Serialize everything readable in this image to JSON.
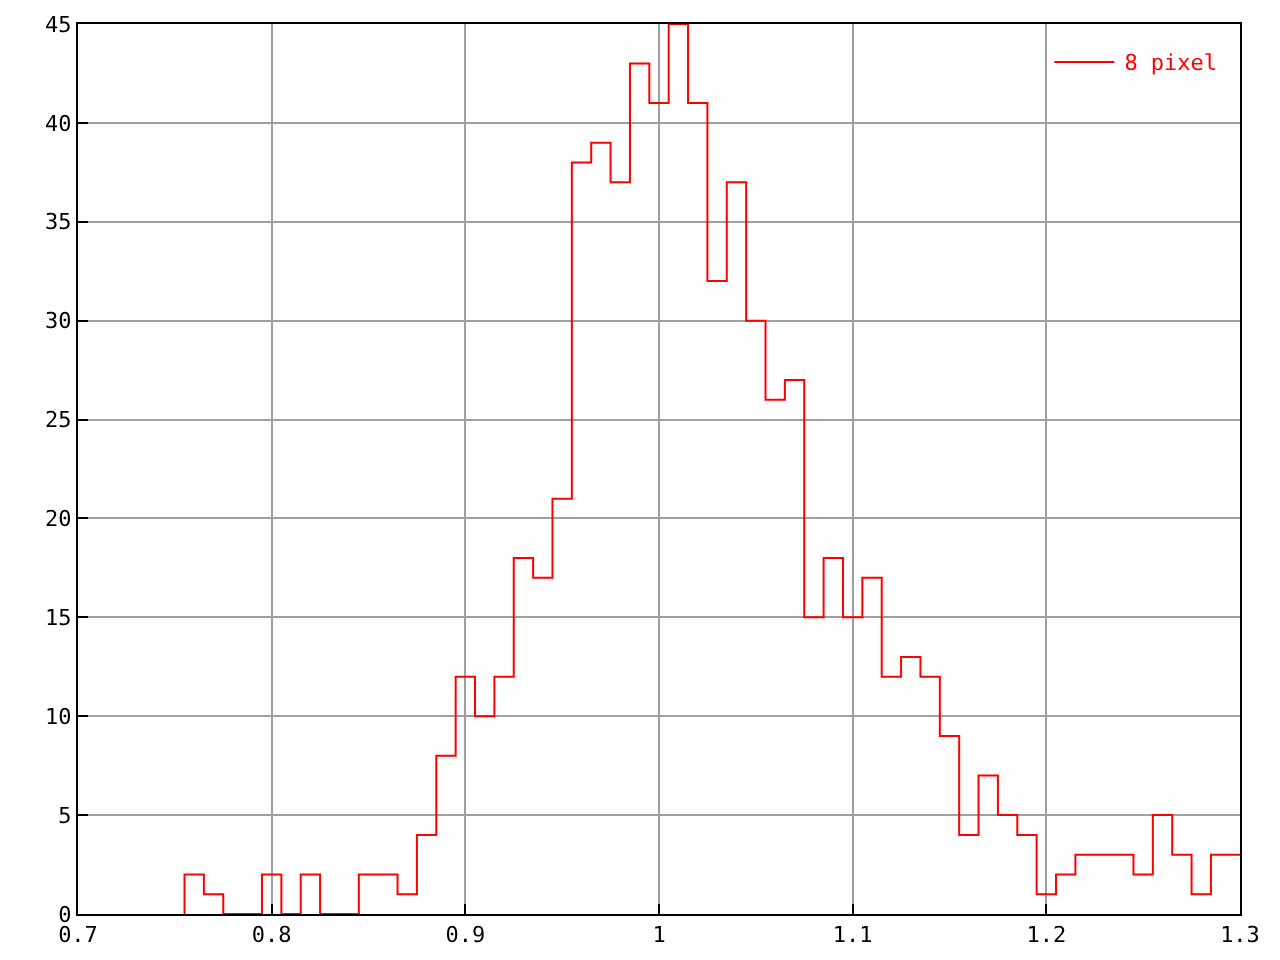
{
  "chart_data": {
    "type": "histogram",
    "bins": [
      0.755,
      0.765,
      0.775,
      0.785,
      0.795,
      0.805,
      0.815,
      0.825,
      0.835,
      0.845,
      0.855,
      0.865,
      0.875,
      0.885,
      0.895,
      0.905,
      0.915,
      0.925,
      0.935,
      0.945,
      0.955,
      0.965,
      0.975,
      0.985,
      0.995,
      1.005,
      1.015,
      1.025,
      1.035,
      1.045,
      1.055,
      1.065,
      1.075,
      1.085,
      1.095,
      1.105,
      1.115,
      1.125,
      1.135,
      1.145,
      1.155,
      1.165,
      1.175,
      1.185,
      1.195,
      1.205,
      1.215,
      1.225,
      1.235,
      1.245,
      1.255,
      1.265,
      1.275,
      1.285,
      1.295,
      1.3
    ],
    "series": [
      {
        "name": "8 pixel",
        "color": "#ff0000",
        "values": [
          2,
          1,
          0,
          0,
          2,
          0,
          2,
          0,
          0,
          2,
          2,
          1,
          4,
          8,
          12,
          10,
          12,
          18,
          17,
          21,
          38,
          39,
          37,
          43,
          41,
          45,
          41,
          32,
          37,
          30,
          26,
          27,
          15,
          18,
          15,
          17,
          12,
          13,
          12,
          9,
          4,
          7,
          5,
          4,
          1,
          2,
          3,
          3,
          3,
          2,
          5,
          3,
          1,
          3,
          3
        ]
      }
    ],
    "xlim": [
      0.7,
      1.3
    ],
    "xticks": [
      0.7,
      0.8,
      0.9,
      1,
      1.1,
      1.2,
      1.3
    ],
    "ylim": [
      0,
      45
    ],
    "yticks": [
      0,
      5,
      10,
      15,
      20,
      25,
      30,
      35,
      40,
      45
    ],
    "grid": true,
    "legend": "top right"
  }
}
